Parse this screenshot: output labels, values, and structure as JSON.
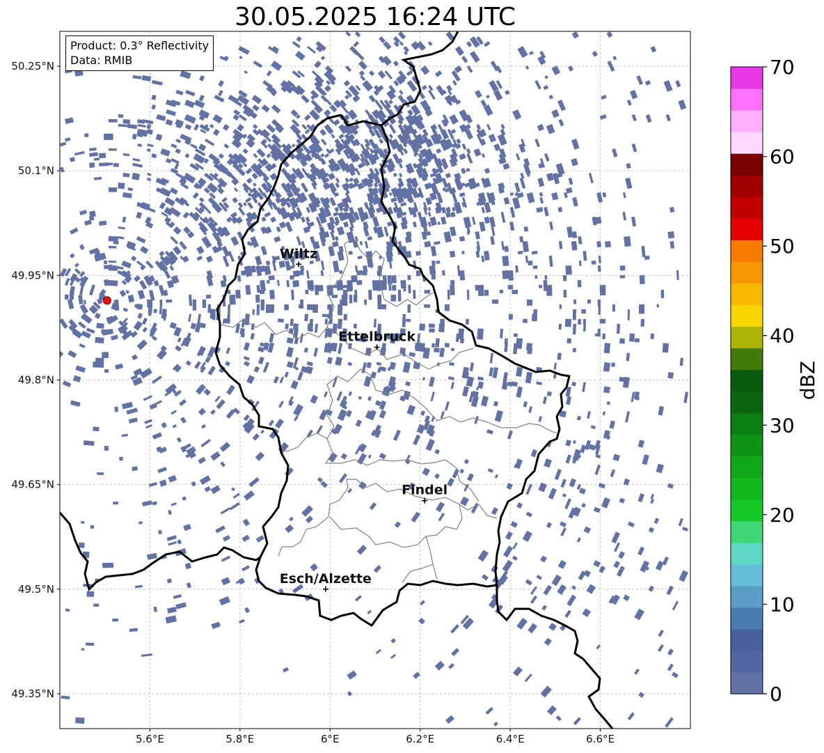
{
  "title": "30.05.2025 16:24 UTC",
  "info": {
    "product_line": "Product: 0.3° Reflectivity",
    "data_line": "Data: RMIB"
  },
  "map": {
    "lon_min": 5.4,
    "lon_max": 6.8,
    "lat_min": 49.3,
    "lat_max": 50.3,
    "x_ticks": [
      {
        "value": 5.6,
        "label": "5.6°E"
      },
      {
        "value": 5.8,
        "label": "5.8°E"
      },
      {
        "value": 6.0,
        "label": "6°E"
      },
      {
        "value": 6.2,
        "label": "6.2°E"
      },
      {
        "value": 6.4,
        "label": "6.4°E"
      },
      {
        "value": 6.6,
        "label": "6.6°E"
      }
    ],
    "y_ticks": [
      {
        "value": 50.25,
        "label": "50.25°N"
      },
      {
        "value": 50.1,
        "label": "50.1°N"
      },
      {
        "value": 49.95,
        "label": "49.95°N"
      },
      {
        "value": 49.8,
        "label": "49.8°N"
      },
      {
        "value": 49.65,
        "label": "49.65°N"
      },
      {
        "value": 49.5,
        "label": "49.5°N"
      },
      {
        "value": 49.35,
        "label": "49.35°N"
      }
    ],
    "radar_site": {
      "lon": 5.505,
      "lat": 49.914,
      "color": "#ee1111"
    },
    "cities": [
      {
        "name": "Wiltz",
        "lon": 5.93,
        "lat": 49.966
      },
      {
        "name": "Ettelbruck",
        "lon": 6.104,
        "lat": 49.847
      },
      {
        "name": "Findel",
        "lon": 6.21,
        "lat": 49.627
      },
      {
        "name": "Esch/Alzette",
        "lon": 5.99,
        "lat": 49.5
      }
    ],
    "echo_color": "#6272a4",
    "echo_dbz": "0-2.5"
  },
  "colorbar": {
    "label": "dBZ",
    "min": 0,
    "max": 70,
    "ticks": [
      {
        "value": 0,
        "label": "0"
      },
      {
        "value": 10,
        "label": "10"
      },
      {
        "value": 20,
        "label": "20"
      },
      {
        "value": 30,
        "label": "30"
      },
      {
        "value": 40,
        "label": "40"
      },
      {
        "value": 50,
        "label": "50"
      },
      {
        "value": 60,
        "label": "60"
      },
      {
        "value": 70,
        "label": "70"
      }
    ],
    "colors": [
      "#6272a4",
      "#5466a2",
      "#4660a0",
      "#4a7cb2",
      "#5a9ec6",
      "#64bed8",
      "#5ed8c4",
      "#3ed672",
      "#14c828",
      "#12b81e",
      "#10a81a",
      "#0e9414",
      "#0c7e12",
      "#0a6610",
      "#0a5a0e",
      "#427a0c",
      "#aab406",
      "#f8d600",
      "#f8b800",
      "#f89800",
      "#f87a00",
      "#e40000",
      "#c20000",
      "#a00000",
      "#7a0000",
      "#ffd8ff",
      "#ffb0ff",
      "#ff70ff",
      "#e838e8"
    ]
  }
}
